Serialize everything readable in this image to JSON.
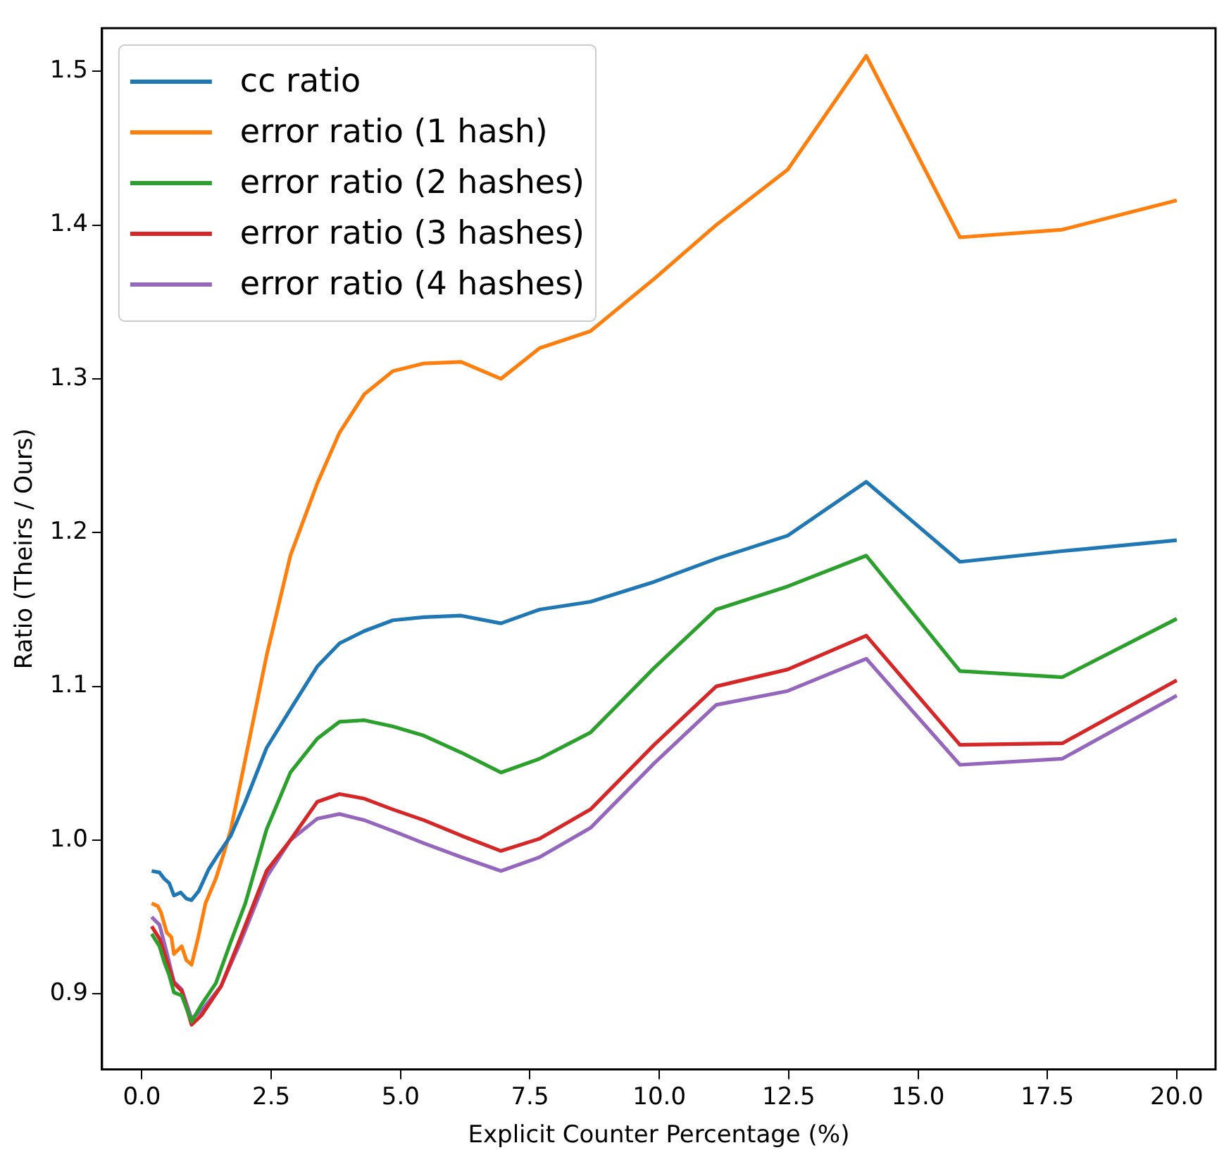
{
  "chart_data": {
    "type": "line",
    "xlabel": "Explicit Counter Percentage (%)",
    "ylabel": "Ratio (Theirs / Ours)",
    "xlim": [
      -0.77,
      20.75
    ],
    "ylim": [
      0.851,
      1.528
    ],
    "xticks": [
      {
        "value": 0,
        "label": "0.0"
      },
      {
        "value": 2.5,
        "label": "2.5"
      },
      {
        "value": 5,
        "label": "5.0"
      },
      {
        "value": 7.5,
        "label": "7.5"
      },
      {
        "value": 10,
        "label": "10.0"
      },
      {
        "value": 12.5,
        "label": "12.5"
      },
      {
        "value": 15,
        "label": "15.0"
      },
      {
        "value": 17.5,
        "label": "17.5"
      },
      {
        "value": 20,
        "label": "20.0"
      }
    ],
    "yticks": [
      {
        "value": 0.9,
        "label": "0.9"
      },
      {
        "value": 1,
        "label": "1.0"
      },
      {
        "value": 1.1,
        "label": "1.1"
      },
      {
        "value": 1.2,
        "label": "1.2"
      },
      {
        "value": 1.3,
        "label": "1.3"
      },
      {
        "value": 1.4,
        "label": "1.4"
      },
      {
        "value": 1.5,
        "label": "1.5"
      }
    ],
    "grid": false,
    "legend": "top left",
    "marker": "none",
    "line_style": "solid",
    "series": [
      {
        "name": "cc ratio",
        "color": "#1f77b4",
        "x": [
          0.19,
          0.34,
          0.43,
          0.53,
          0.62,
          0.75,
          0.86,
          0.96,
          1.1,
          1.29,
          1.48,
          1.72,
          2.0,
          2.41,
          2.87,
          3.39,
          3.82,
          4.3,
          4.85,
          5.45,
          6.17,
          6.94,
          7.69,
          8.67,
          9.9,
          11.1,
          12.48,
          14.0,
          15.81,
          17.79,
          20.0
        ],
        "values": [
          0.98,
          0.979,
          0.975,
          0.972,
          0.964,
          0.966,
          0.962,
          0.961,
          0.967,
          0.981,
          0.991,
          1.003,
          1.025,
          1.06,
          1.085,
          1.113,
          1.128,
          1.136,
          1.143,
          1.145,
          1.146,
          1.141,
          1.15,
          1.155,
          1.168,
          1.183,
          1.198,
          1.233,
          1.181,
          1.188,
          1.195
        ]
      },
      {
        "name": "error ratio (1 hash)",
        "color": "#ff7f0e",
        "x": [
          0.19,
          0.31,
          0.37,
          0.48,
          0.57,
          0.62,
          0.77,
          0.86,
          0.96,
          1.09,
          1.23,
          1.43,
          1.58,
          1.72,
          1.91,
          2.41,
          2.87,
          3.39,
          3.82,
          4.3,
          4.85,
          5.45,
          6.17,
          6.94,
          7.69,
          8.67,
          9.9,
          11.1,
          12.48,
          14.0,
          15.81,
          17.79,
          20.0
        ],
        "values": [
          0.959,
          0.957,
          0.953,
          0.94,
          0.937,
          0.926,
          0.931,
          0.922,
          0.919,
          0.937,
          0.959,
          0.975,
          0.991,
          1.007,
          1.038,
          1.12,
          1.185,
          1.232,
          1.265,
          1.29,
          1.305,
          1.31,
          1.311,
          1.3,
          1.32,
          1.331,
          1.365,
          1.4,
          1.436,
          1.51,
          1.392,
          1.397,
          1.416
        ]
      },
      {
        "name": "error ratio (2 hashes)",
        "color": "#2ca02c",
        "x": [
          0.19,
          0.34,
          0.43,
          0.53,
          0.62,
          0.77,
          0.96,
          1.15,
          1.43,
          1.72,
          2.0,
          2.41,
          2.87,
          3.39,
          3.82,
          4.3,
          4.85,
          5.45,
          6.17,
          6.94,
          7.69,
          8.67,
          9.9,
          11.1,
          12.48,
          14.0,
          15.81,
          17.79,
          20.0
        ],
        "values": [
          0.939,
          0.931,
          0.921,
          0.912,
          0.901,
          0.899,
          0.882,
          0.893,
          0.907,
          0.934,
          0.959,
          1.007,
          1.044,
          1.066,
          1.077,
          1.078,
          1.074,
          1.068,
          1.057,
          1.044,
          1.053,
          1.07,
          1.112,
          1.15,
          1.165,
          1.185,
          1.11,
          1.106,
          1.144
        ]
      },
      {
        "name": "error ratio (3 hashes)",
        "color": "#d62728",
        "x": [
          0.19,
          0.34,
          0.48,
          0.62,
          0.77,
          0.96,
          1.15,
          1.53,
          1.91,
          2.41,
          2.87,
          3.39,
          3.82,
          4.3,
          4.85,
          5.45,
          6.17,
          6.94,
          7.69,
          8.67,
          9.9,
          11.1,
          12.48,
          14.0,
          15.81,
          17.79,
          20.0
        ],
        "values": [
          0.944,
          0.936,
          0.922,
          0.907,
          0.902,
          0.88,
          0.886,
          0.905,
          0.937,
          0.98,
          1.0,
          1.025,
          1.03,
          1.027,
          1.02,
          1.013,
          1.003,
          0.993,
          1.001,
          1.02,
          1.062,
          1.1,
          1.111,
          1.133,
          1.062,
          1.063,
          1.104
        ]
      },
      {
        "name": "error ratio (4 hashes)",
        "color": "#9467bd",
        "x": [
          0.19,
          0.34,
          0.48,
          0.62,
          0.77,
          0.96,
          1.15,
          1.53,
          1.91,
          2.41,
          2.87,
          3.39,
          3.82,
          4.3,
          4.85,
          5.45,
          6.17,
          6.94,
          7.69,
          8.67,
          9.9,
          11.1,
          12.48,
          14.0,
          15.81,
          17.79,
          20.0
        ],
        "values": [
          0.95,
          0.945,
          0.927,
          0.908,
          0.903,
          0.884,
          0.889,
          0.905,
          0.934,
          0.976,
          1.0,
          1.014,
          1.017,
          1.013,
          1.006,
          0.998,
          0.989,
          0.98,
          0.989,
          1.008,
          1.05,
          1.088,
          1.097,
          1.118,
          1.049,
          1.053,
          1.094
        ]
      }
    ]
  }
}
